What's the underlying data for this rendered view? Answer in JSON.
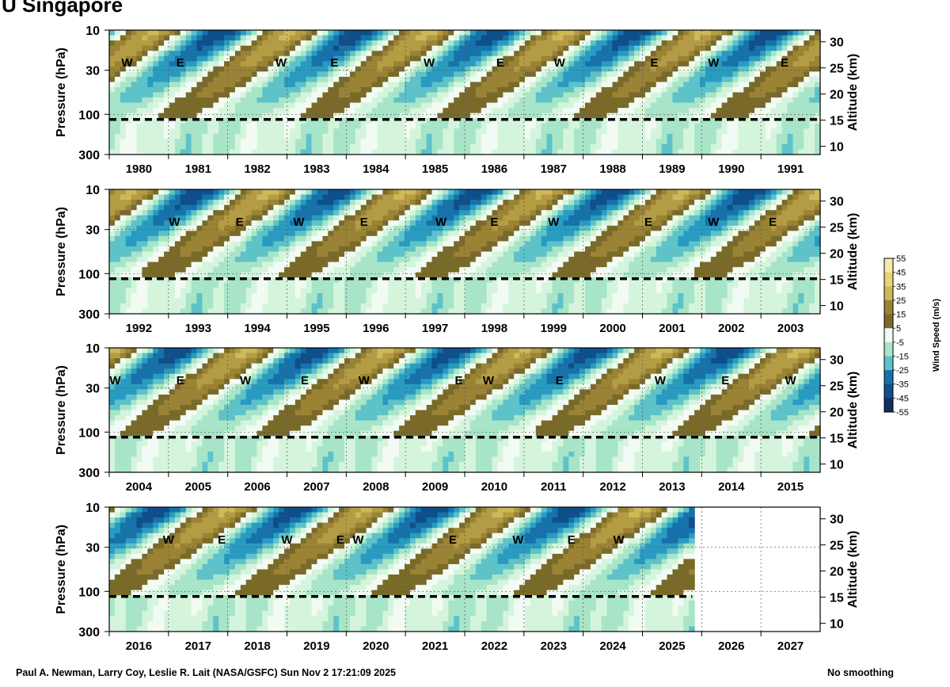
{
  "title": "U Singapore",
  "footer": {
    "credit": "Paul A. Newman, Larry Coy, Leslie R. Lait (NASA/GSFC) Sun Nov  2 17:21:09 2025",
    "smoothing": "No smoothing"
  },
  "colors": {
    "scale": [
      "#07152b",
      "#12305e",
      "#0f4f8a",
      "#1672a9",
      "#2a9bc0",
      "#5ec2c9",
      "#a8e5c8",
      "#d4f5dc",
      "#f2fbf3",
      "#7a6a2a",
      "#9a8335",
      "#b49c45",
      "#cfb858",
      "#e7d478",
      "#f6eaa6",
      "#fffbdd"
    ],
    "contour": "#000000"
  },
  "chart_data": {
    "type": "heatmap",
    "variable": "U",
    "location": "Singapore",
    "ylabel": "Pressure (hPa)",
    "y2label": "Altitude (km)",
    "pressure_ticks": [
      "10",
      "30",
      "100",
      "300"
    ],
    "altitude_ticks": [
      "30",
      "25",
      "20",
      "15",
      "10"
    ],
    "colorbar": {
      "label": "Wind Speed (m/s)",
      "ticks": [
        "55",
        "45",
        "35",
        "25",
        "15",
        "5",
        "-5",
        "-15",
        "-25",
        "-35",
        "-45",
        "-55"
      ],
      "range": [
        -55,
        55
      ]
    },
    "panels": [
      {
        "years": [
          "1980",
          "1981",
          "1982",
          "1983",
          "1984",
          "1985",
          "1986",
          "1987",
          "1988",
          "1989",
          "1990",
          "1991"
        ],
        "phase_labels": [
          {
            "text": "W",
            "t": 1980.3
          },
          {
            "text": "E",
            "t": 1981.2
          },
          {
            "text": "W",
            "t": 1982.9
          },
          {
            "text": "E",
            "t": 1983.8
          },
          {
            "text": "W",
            "t": 1985.4
          },
          {
            "text": "E",
            "t": 1986.6
          },
          {
            "text": "W",
            "t": 1987.6
          },
          {
            "text": "E",
            "t": 1989.2
          },
          {
            "text": "W",
            "t": 1990.2
          },
          {
            "text": "E",
            "t": 1991.4
          }
        ]
      },
      {
        "years": [
          "1992",
          "1993",
          "1994",
          "1995",
          "1996",
          "1997",
          "1998",
          "1999",
          "2000",
          "2001",
          "2002",
          "2003"
        ],
        "phase_labels": [
          {
            "text": "W",
            "t": 1993.1
          },
          {
            "text": "E",
            "t": 1994.2
          },
          {
            "text": "W",
            "t": 1995.2
          },
          {
            "text": "E",
            "t": 1996.3
          },
          {
            "text": "W",
            "t": 1997.6
          },
          {
            "text": "E",
            "t": 1998.5
          },
          {
            "text": "W",
            "t": 1999.5
          },
          {
            "text": "E",
            "t": 2001.1
          },
          {
            "text": "W",
            "t": 2002.2
          },
          {
            "text": "E",
            "t": 2003.2
          }
        ]
      },
      {
        "years": [
          "2004",
          "2005",
          "2006",
          "2007",
          "2008",
          "2009",
          "2010",
          "2011",
          "2012",
          "2013",
          "2014",
          "2015"
        ],
        "phase_labels": [
          {
            "text": "W",
            "t": 2004.1
          },
          {
            "text": "E",
            "t": 2005.2
          },
          {
            "text": "W",
            "t": 2006.3
          },
          {
            "text": "E",
            "t": 2007.3
          },
          {
            "text": "W",
            "t": 2008.3
          },
          {
            "text": "E",
            "t": 2009.9
          },
          {
            "text": "W",
            "t": 2010.4
          },
          {
            "text": "E",
            "t": 2011.6
          },
          {
            "text": "W",
            "t": 2013.3
          },
          {
            "text": "E",
            "t": 2014.4
          },
          {
            "text": "W",
            "t": 2015.5
          }
        ]
      },
      {
        "years": [
          "2016",
          "2017",
          "2018",
          "2019",
          "2020",
          "2021",
          "2022",
          "2023",
          "2024",
          "2025",
          "2026",
          "2027"
        ],
        "data_end": 2025.84,
        "phase_labels": [
          {
            "text": "W",
            "t": 2017.0
          },
          {
            "text": "E",
            "t": 2017.9
          },
          {
            "text": "W",
            "t": 2019.0
          },
          {
            "text": "E",
            "t": 2019.9
          },
          {
            "text": "W",
            "t": 2020.2
          },
          {
            "text": "E",
            "t": 2021.8
          },
          {
            "text": "W",
            "t": 2022.9
          },
          {
            "text": "E",
            "t": 2023.8
          },
          {
            "text": "W",
            "t": 2024.6
          }
        ]
      }
    ]
  }
}
